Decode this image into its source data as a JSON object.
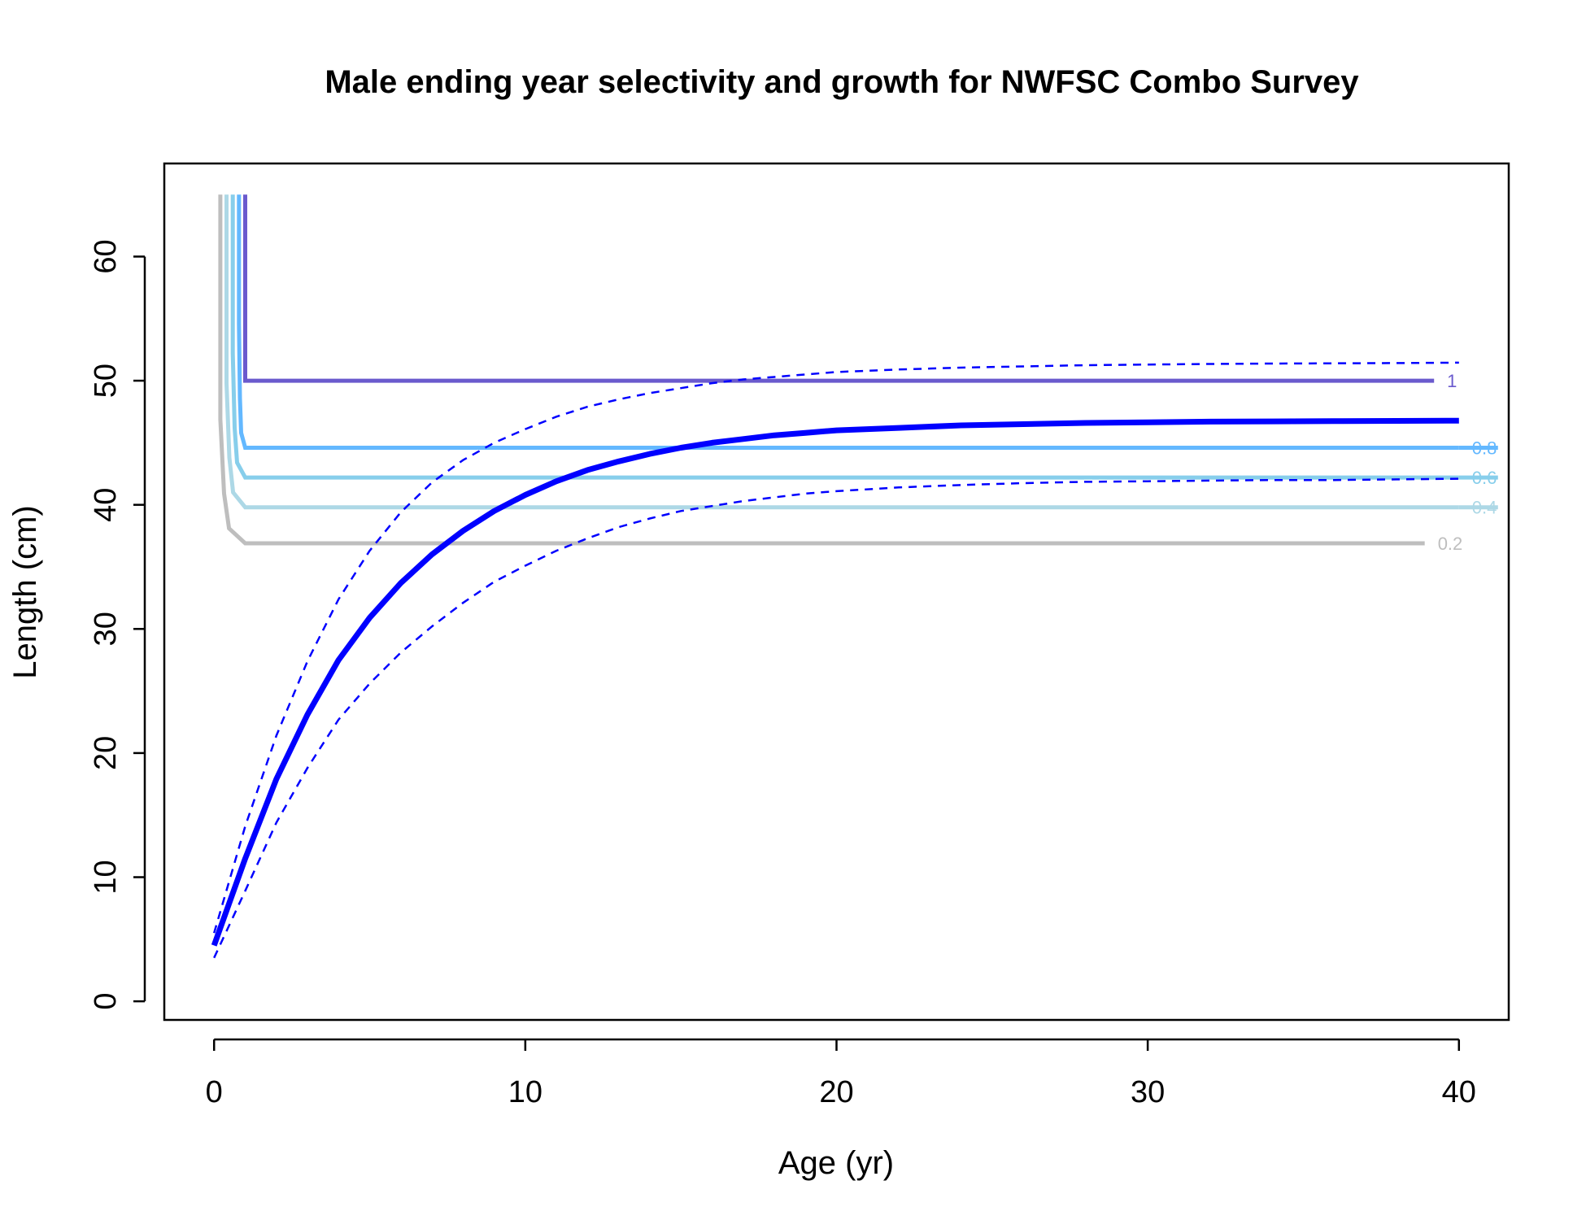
{
  "chart_data": {
    "type": "line",
    "title": "Male ending year selectivity and growth for NWFSC Combo Survey",
    "xlabel": "Age (yr)",
    "ylabel": "Length (cm)",
    "xlim": [
      -1.6,
      41.6
    ],
    "ylim": [
      -1.5,
      67.5
    ],
    "x_ticks": [
      0,
      10,
      20,
      30,
      40
    ],
    "y_ticks": [
      0,
      10,
      20,
      30,
      40,
      50,
      60
    ],
    "grid": false,
    "legend": "none",
    "growth": {
      "color": "#0000ff",
      "ages": [
        0,
        1,
        2,
        3,
        4,
        5,
        6,
        7,
        8,
        9,
        10,
        11,
        12,
        13,
        14,
        15,
        16,
        17,
        18,
        19,
        20,
        22,
        24,
        26,
        28,
        30,
        32,
        34,
        36,
        38,
        40
      ],
      "mean": [
        4.5,
        11.5,
        17.9,
        23.1,
        27.5,
        30.9,
        33.7,
        36.0,
        37.9,
        39.5,
        40.8,
        41.9,
        42.8,
        43.5,
        44.1,
        44.6,
        45.0,
        45.3,
        45.6,
        45.8,
        46.0,
        46.2,
        46.4,
        46.5,
        46.6,
        46.65,
        46.7,
        46.72,
        46.74,
        46.76,
        46.78
      ],
      "upper": [
        5.5,
        14.1,
        21.4,
        27.4,
        32.4,
        36.3,
        39.4,
        41.8,
        43.6,
        45.0,
        46.1,
        47.1,
        47.9,
        48.5,
        49.0,
        49.4,
        49.8,
        50.1,
        50.3,
        50.5,
        50.7,
        50.9,
        51.05,
        51.15,
        51.25,
        51.3,
        51.35,
        51.38,
        51.4,
        51.42,
        51.45
      ],
      "lower": [
        3.5,
        8.9,
        14.4,
        18.8,
        22.7,
        25.6,
        28.1,
        30.2,
        32.1,
        33.8,
        35.1,
        36.3,
        37.3,
        38.2,
        38.9,
        39.5,
        39.9,
        40.3,
        40.6,
        40.9,
        41.1,
        41.4,
        41.6,
        41.75,
        41.85,
        41.9,
        41.95,
        42.0,
        42.0,
        42.05,
        42.1
      ]
    },
    "selectivity_contours": [
      {
        "level": "0.2",
        "color": "#bebebe",
        "x_start": 0.2,
        "x_corner": 1.0,
        "length": 36.9,
        "x_end": 38.9
      },
      {
        "level": "0.4",
        "color": "#add8e6",
        "x_start": 0.4,
        "x_corner": 1.0,
        "length": 39.8,
        "x_end": 40
      },
      {
        "level": "0.6",
        "color": "#87ceeb",
        "x_start": 0.6,
        "x_corner": 1.0,
        "length": 42.2,
        "x_end": 40
      },
      {
        "level": "0.8",
        "color": "#63b8ff",
        "x_start": 0.8,
        "x_corner": 1.0,
        "length": 44.6,
        "x_end": 40
      },
      {
        "level": "1",
        "color": "#6a5acd",
        "x_start": 1.0,
        "x_corner": 1.0,
        "length": 50.0,
        "x_end": 39.2
      }
    ],
    "contour_top": 65
  }
}
